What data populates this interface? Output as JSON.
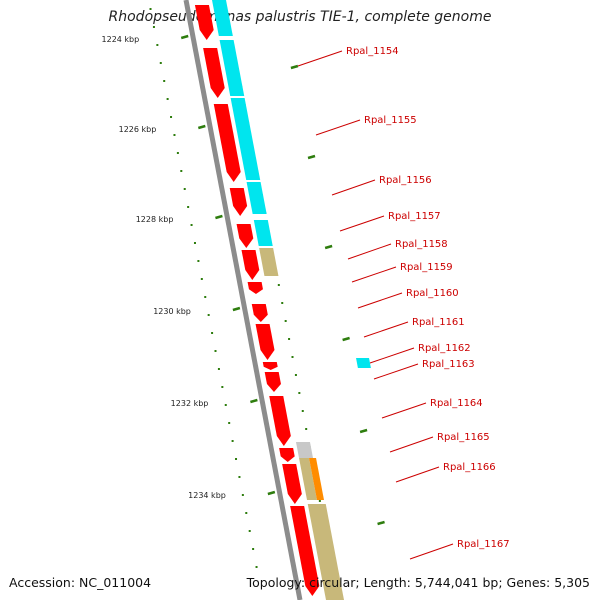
{
  "title": "Rhodopseudomonas palustris TIE-1, complete genome",
  "footer": {
    "accession": "Accession: NC_011004",
    "summary": "Topology: circular; Length: 5,744,041 bp; Genes: 5,305"
  },
  "colors": {
    "backbone": "#8c8c8c",
    "cds_forward": "#ff0000",
    "cds_other": "#00e5ee",
    "feature_tan": "#c8b87a",
    "feature_orange": "#ff8c00",
    "feature_grey": "#c8c8c8",
    "ticks": "#2e7d0e",
    "label": "#cc0000"
  },
  "kbp_ticks": [
    "1224 kbp",
    "1226 kbp",
    "1228 kbp",
    "1230 kbp",
    "1232 kbp",
    "1234 kbp"
  ],
  "gene_labels": [
    "Rpal_1154",
    "Rpal_1155",
    "Rpal_1156",
    "Rpal_1157",
    "Rpal_1158",
    "Rpal_1159",
    "Rpal_1160",
    "Rpal_1161",
    "Rpal_1162",
    "Rpal_1163",
    "Rpal_1164",
    "Rpal_1165",
    "Rpal_1166",
    "Rpal_1167"
  ]
}
